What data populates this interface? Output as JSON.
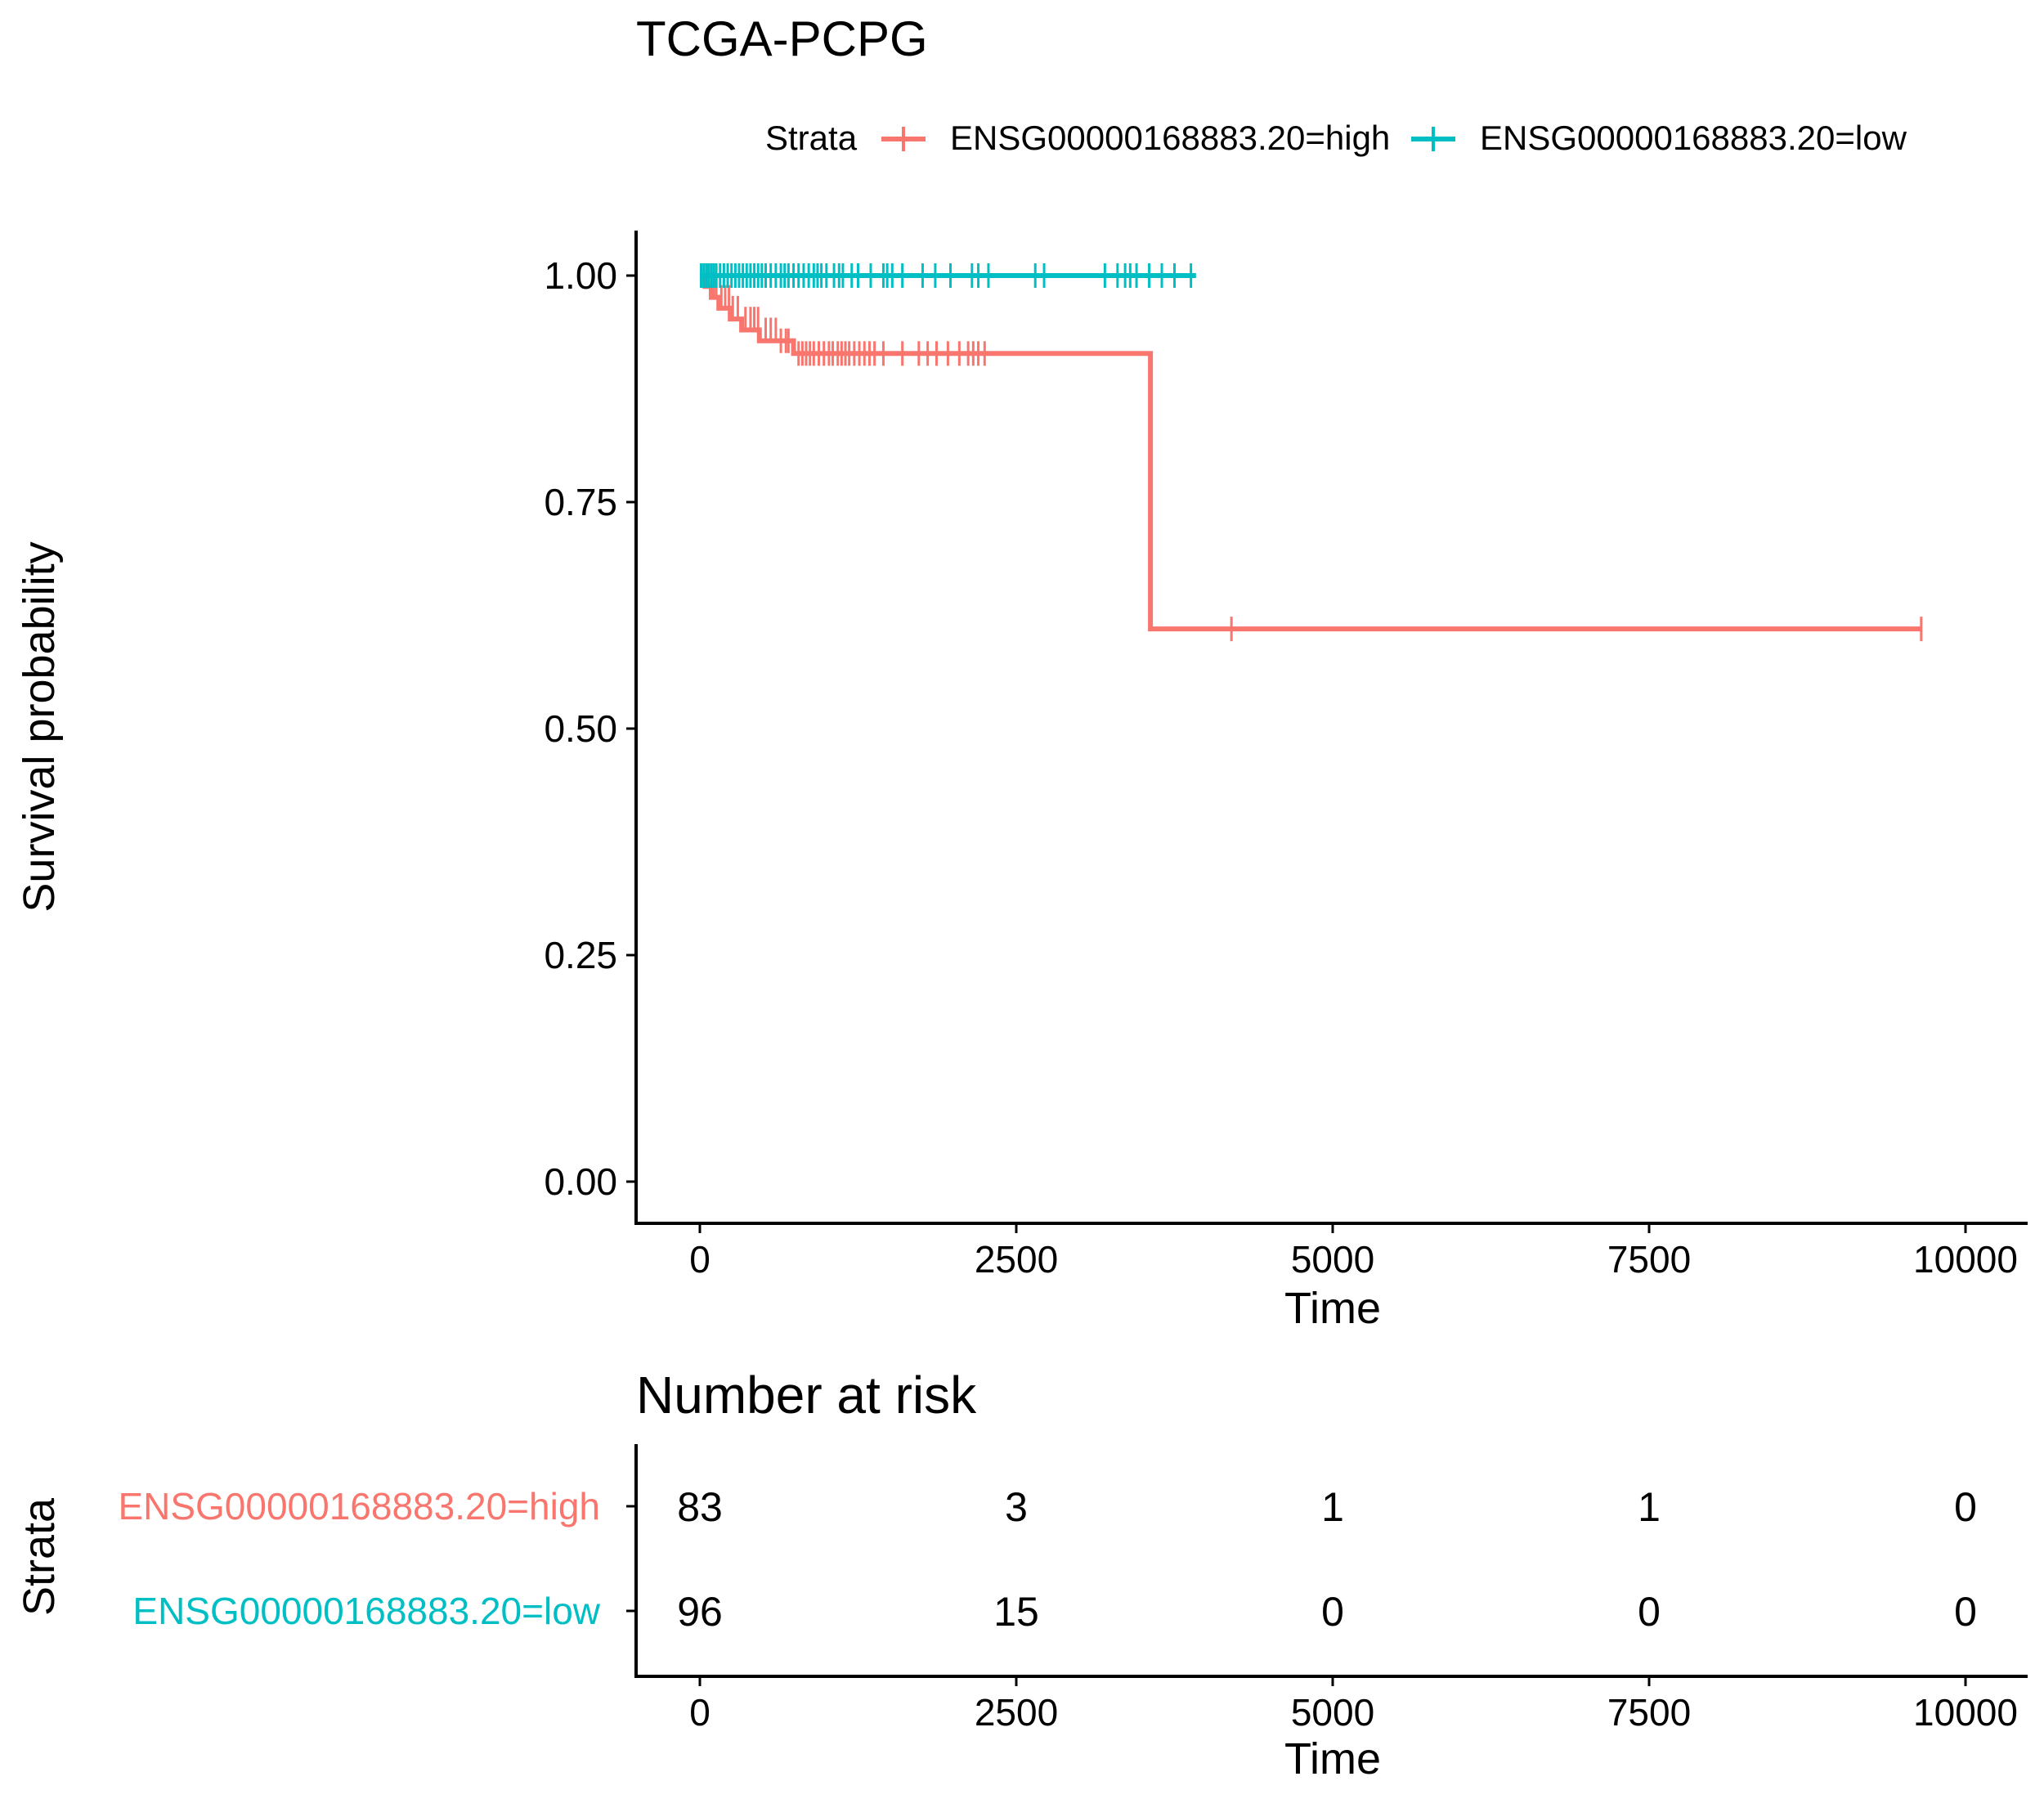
{
  "chart_data": [
    {
      "type": "line",
      "title": "TCGA-PCPG",
      "xlabel": "Time",
      "ylabel": "Survival probability",
      "xlim": [
        -500,
        10500
      ],
      "ylim": [
        -0.05,
        1.05
      ],
      "x_ticks": [
        0,
        2500,
        5000,
        7500,
        10000
      ],
      "x_tick_labels": [
        "0",
        "2500",
        "5000",
        "7500",
        "10000"
      ],
      "y_ticks": [
        0,
        0.25,
        0.5,
        0.75,
        1.0
      ],
      "y_tick_labels": [
        "0.00",
        "0.25",
        "0.50",
        "0.75",
        "1.00"
      ],
      "grid": false,
      "legend": {
        "title": "Strata",
        "position": "top",
        "entries": [
          "ENSG00000168883.20=high",
          "ENSG00000168883.20=low"
        ]
      },
      "series": [
        {
          "name": "ENSG00000168883.20=high",
          "color": "#F8766D",
          "step_x": [
            0,
            40,
            90,
            150,
            240,
            330,
            470,
            610,
            740,
            780,
            3560,
            9650
          ],
          "step_y": [
            1.0,
            0.988,
            0.976,
            0.964,
            0.952,
            0.94,
            0.928,
            0.928,
            0.914,
            0.914,
            0.61,
            0.61
          ],
          "censor_x": [
            60,
            110,
            130,
            170,
            200,
            230,
            260,
            300,
            360,
            400,
            430,
            460,
            520,
            560,
            600,
            640,
            680,
            700,
            780,
            810,
            840,
            870,
            900,
            940,
            980,
            1020,
            1050,
            1090,
            1120,
            1150,
            1180,
            1220,
            1260,
            1300,
            1340,
            1380,
            1450,
            1600,
            1730,
            1800,
            1870,
            1960,
            2050,
            2120,
            2160,
            2200,
            2250,
            4200,
            9650
          ],
          "censor_y": [
            1.0,
            0.988,
            0.988,
            0.976,
            0.976,
            0.976,
            0.964,
            0.964,
            0.952,
            0.952,
            0.952,
            0.952,
            0.94,
            0.94,
            0.94,
            0.928,
            0.928,
            0.928,
            0.914,
            0.914,
            0.914,
            0.914,
            0.914,
            0.914,
            0.914,
            0.914,
            0.914,
            0.914,
            0.914,
            0.914,
            0.914,
            0.914,
            0.914,
            0.914,
            0.914,
            0.914,
            0.914,
            0.914,
            0.914,
            0.914,
            0.914,
            0.914,
            0.914,
            0.914,
            0.914,
            0.914,
            0.914,
            0.61,
            0.61
          ]
        },
        {
          "name": "ENSG00000168883.20=low",
          "color": "#00BFC4",
          "step_x": [
            0,
            3920
          ],
          "step_y": [
            1.0,
            1.0
          ],
          "censor_x": [
            10,
            30,
            50,
            70,
            90,
            110,
            130,
            160,
            190,
            220,
            250,
            280,
            310,
            340,
            370,
            400,
            430,
            460,
            490,
            520,
            560,
            600,
            640,
            670,
            700,
            740,
            780,
            820,
            860,
            900,
            930,
            960,
            1000,
            1060,
            1100,
            1130,
            1200,
            1250,
            1350,
            1450,
            1480,
            1520,
            1600,
            1760,
            1860,
            1980,
            2150,
            2200,
            2280,
            2650,
            2720,
            3200,
            3300,
            3360,
            3400,
            3450,
            3550,
            3650,
            3750,
            3880
          ],
          "censor_y": [
            1.0,
            1.0,
            1.0,
            1.0,
            1.0,
            1.0,
            1.0,
            1.0,
            1.0,
            1.0,
            1.0,
            1.0,
            1.0,
            1.0,
            1.0,
            1.0,
            1.0,
            1.0,
            1.0,
            1.0,
            1.0,
            1.0,
            1.0,
            1.0,
            1.0,
            1.0,
            1.0,
            1.0,
            1.0,
            1.0,
            1.0,
            1.0,
            1.0,
            1.0,
            1.0,
            1.0,
            1.0,
            1.0,
            1.0,
            1.0,
            1.0,
            1.0,
            1.0,
            1.0,
            1.0,
            1.0,
            1.0,
            1.0,
            1.0,
            1.0,
            1.0,
            1.0,
            1.0,
            1.0,
            1.0,
            1.0,
            1.0,
            1.0,
            1.0,
            1.0
          ]
        }
      ]
    },
    {
      "type": "table",
      "title": "Number at risk",
      "xlabel": "Time",
      "ylabel": "Strata",
      "xlim": [
        -500,
        10500
      ],
      "x_ticks": [
        0,
        2500,
        5000,
        7500,
        10000
      ],
      "x_tick_labels": [
        "0",
        "2500",
        "5000",
        "7500",
        "10000"
      ],
      "rows": [
        {
          "label": "ENSG00000168883.20=high",
          "color": "#F8766D",
          "values": [
            "83",
            "3",
            "1",
            "1",
            "0"
          ]
        },
        {
          "label": "ENSG00000168883.20=low",
          "color": "#00BFC4",
          "values": [
            "96",
            "15",
            "0",
            "0",
            "0"
          ]
        }
      ]
    }
  ]
}
